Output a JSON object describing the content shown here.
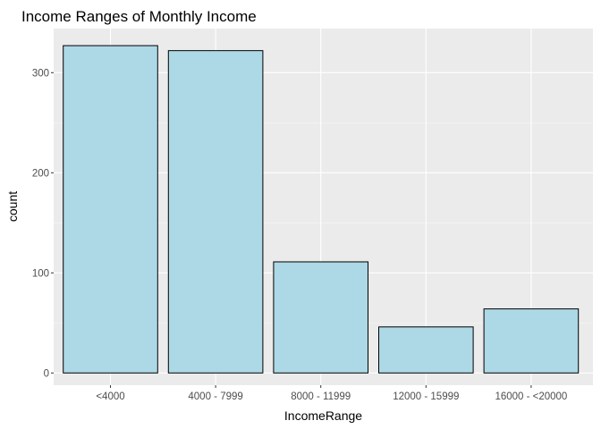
{
  "chart_data": {
    "type": "bar",
    "title": "Income Ranges of Monthly Income",
    "xlabel": "IncomeRange",
    "ylabel": "count",
    "categories": [
      "<4000",
      "4000 - 7999",
      "8000 - 11999",
      "12000 - 15999",
      "16000 - <20000"
    ],
    "values": [
      327,
      322,
      111,
      46,
      64
    ],
    "ylim": [
      0,
      340
    ],
    "yticks": [
      0,
      100,
      200,
      300
    ],
    "ytick_labels": [
      "0",
      "100",
      "200",
      "300"
    ],
    "grid": true,
    "legend": "none",
    "colors": {
      "bar_fill": "#add8e6",
      "bar_stroke": "#000000",
      "panel_background": "#ebebeb",
      "grid_major": "#ffffff",
      "grid_minor": "#f5f5f5",
      "tick_text": "#4d4d4d"
    }
  }
}
